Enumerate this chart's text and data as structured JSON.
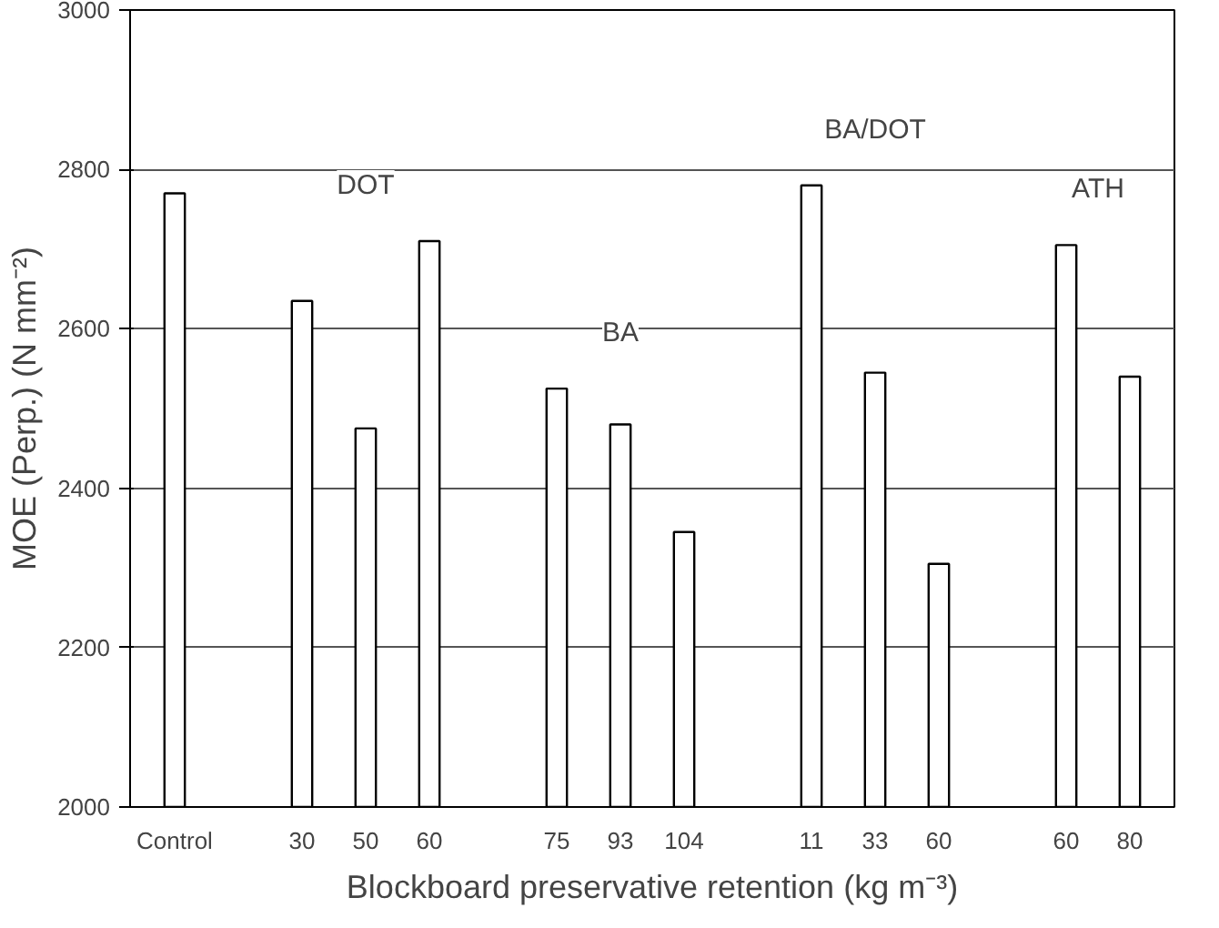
{
  "chart_data": {
    "type": "bar",
    "xlabel": "Blockboard preservative retention (kg m⁻³)",
    "ylabel": "MOE (Perp.) (N mm⁻²)",
    "categories": [
      "Control",
      null,
      "30",
      "50",
      "60",
      null,
      "75",
      "93",
      "104",
      null,
      "11",
      "33",
      "60",
      null,
      "60",
      "80"
    ],
    "values": [
      2770,
      null,
      2635,
      2475,
      2710,
      null,
      2525,
      2480,
      2345,
      null,
      2780,
      2545,
      2305,
      null,
      2705,
      2540
    ],
    "color": "#ffffff",
    "ylim": [
      2000,
      3000
    ],
    "yticks": [
      2000,
      2200,
      2400,
      2600,
      2800,
      3000
    ],
    "grid": "y",
    "annotations": [
      "DOT",
      "BA",
      "BA/DOT",
      "ATH"
    ]
  }
}
